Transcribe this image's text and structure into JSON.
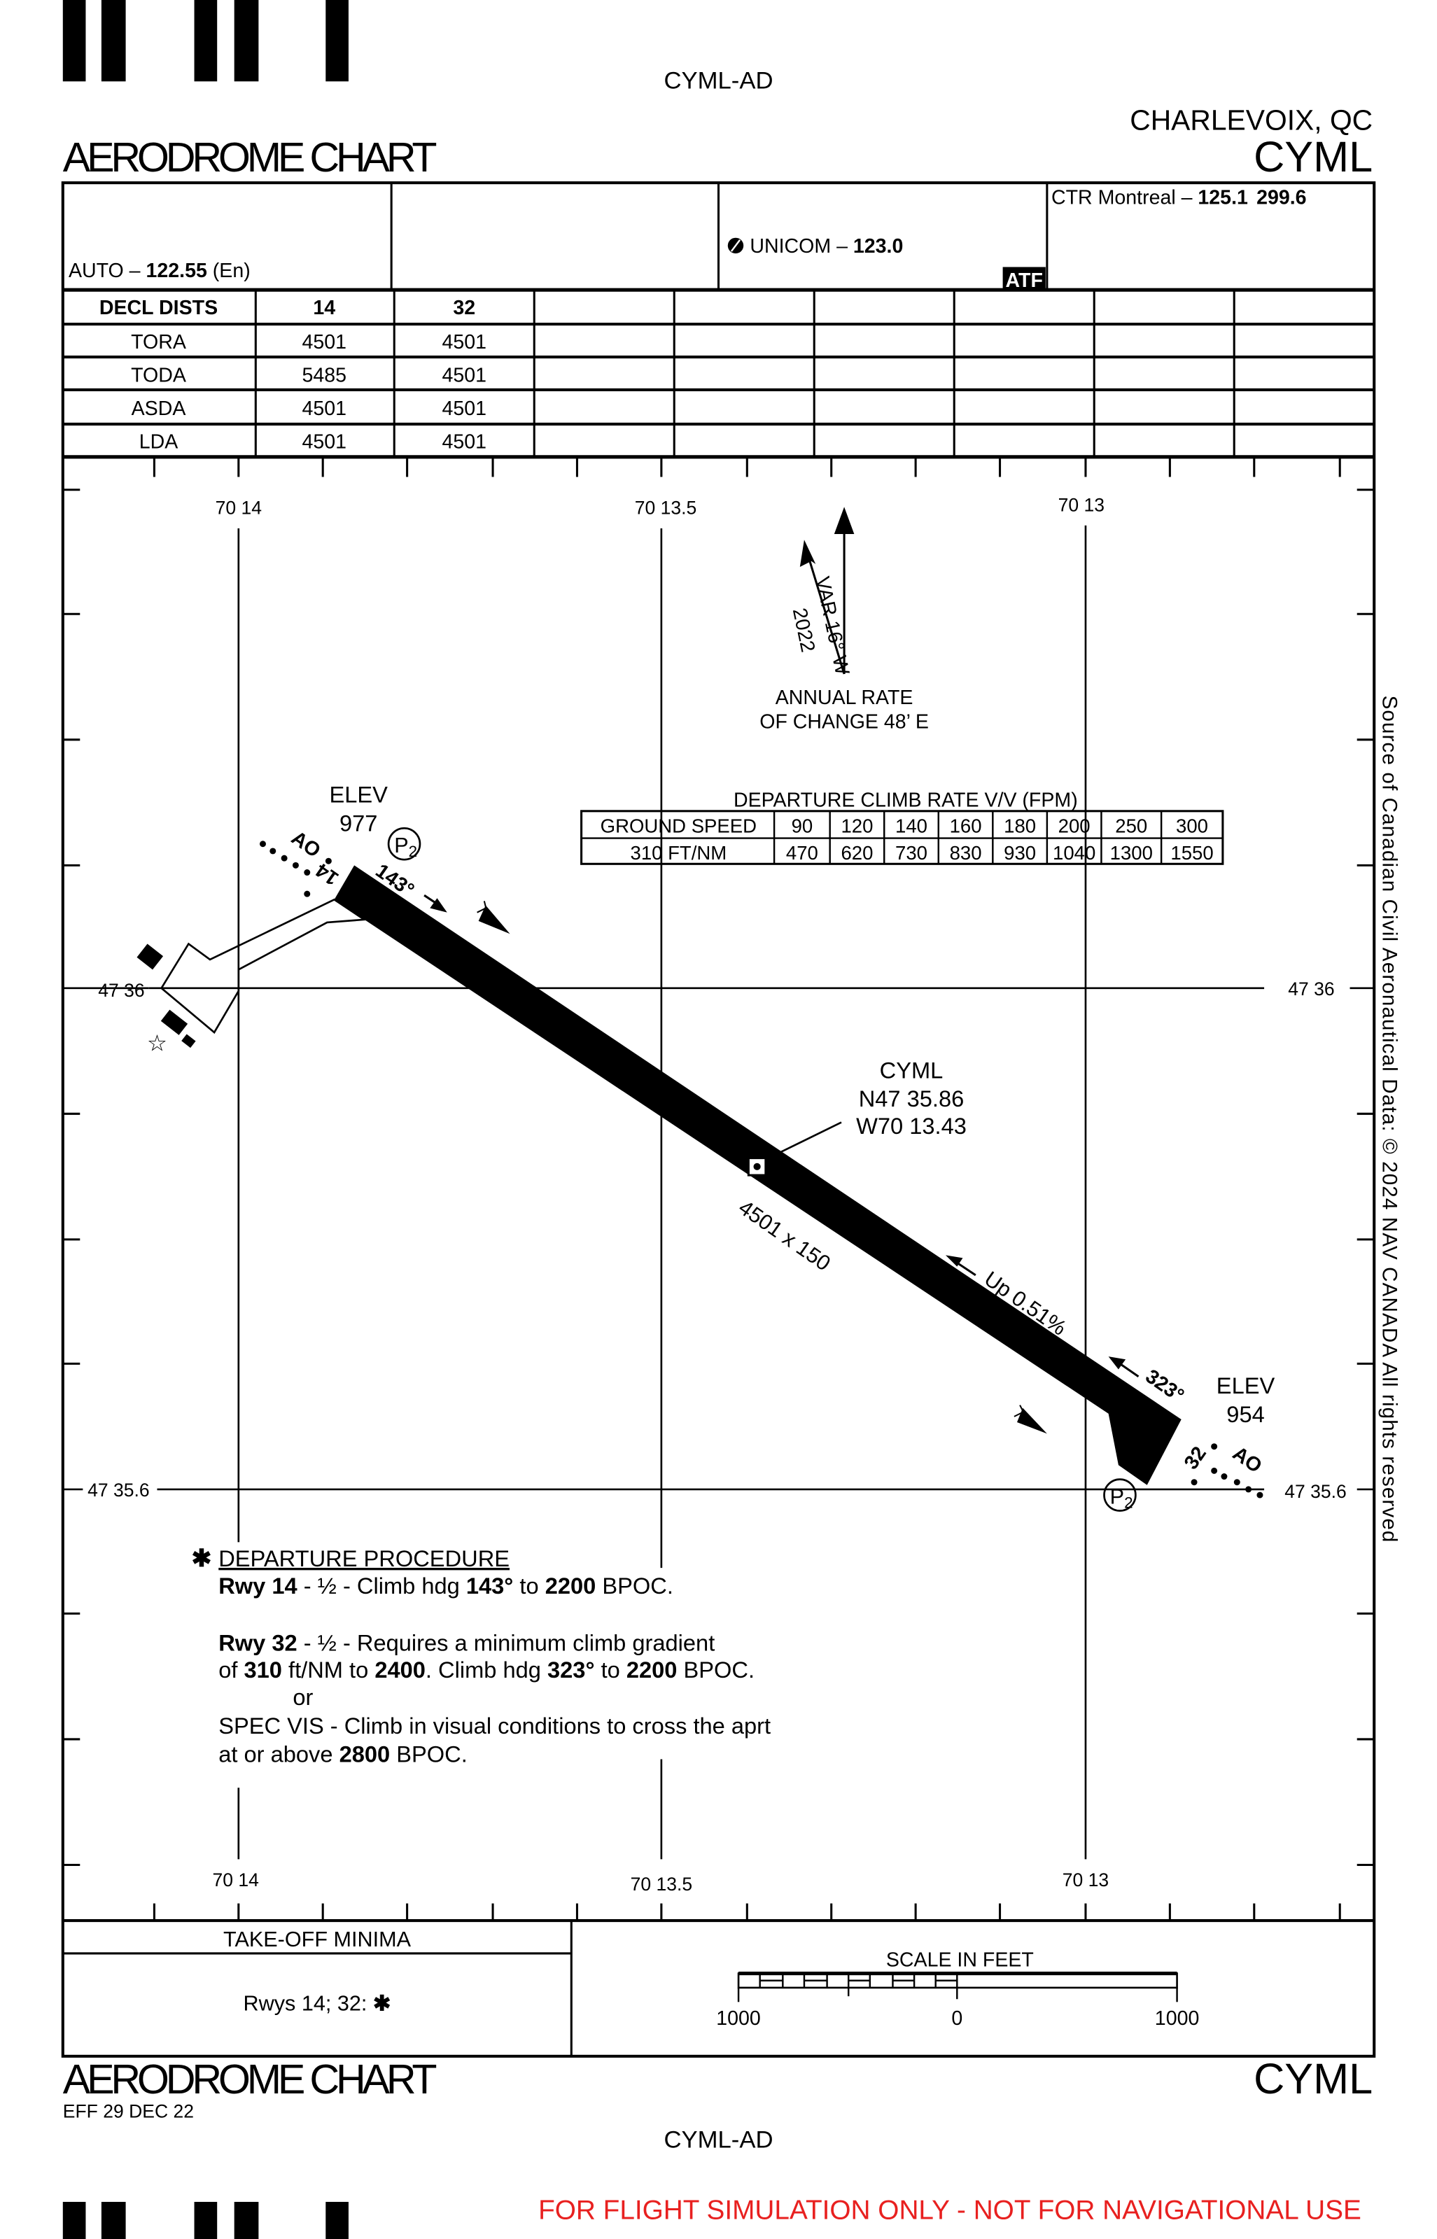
{
  "header": {
    "doc_id": "CYML-AD",
    "title": "AERODROME CHART",
    "location": "CHARLEVOIX, QC",
    "ident": "CYML"
  },
  "comms": {
    "auto_label": "AUTO – ",
    "auto_freq": "122.55",
    "auto_suffix": " (En)",
    "unicom_label": "UNICOM – ",
    "unicom_freq": "123.0",
    "atf": "ATF",
    "ctr_label": "CTR Montreal – ",
    "ctr_freq1": "125.1",
    "ctr_freq2": "299.6"
  },
  "decl_dists": {
    "headers": [
      "DECL DISTS",
      "14",
      "32"
    ],
    "rows": [
      [
        "TORA",
        "4501",
        "4501"
      ],
      [
        "TODA",
        "5485",
        "4501"
      ],
      [
        "ASDA",
        "4501",
        "4501"
      ],
      [
        "LDA",
        "4501",
        "4501"
      ]
    ]
  },
  "grid": {
    "lon_labels": [
      "70 14",
      "70 13.5",
      "70 13"
    ],
    "lat_labels": [
      "47 36",
      "47 35.6"
    ]
  },
  "magnetic": {
    "variation": "VAR 16° W",
    "year": "2022",
    "annual_1": "ANNUAL RATE",
    "annual_2": "OF CHANGE 48’ E"
  },
  "climb_table": {
    "title": "DEPARTURE CLIMB RATE V/V (FPM)",
    "row1_label": "GROUND SPEED",
    "speeds": [
      "90",
      "120",
      "140",
      "160",
      "180",
      "200",
      "250",
      "300"
    ],
    "row2_label": "310 FT/NM",
    "rates": [
      "470",
      "620",
      "730",
      "830",
      "930",
      "1040",
      "1300",
      "1550"
    ]
  },
  "runway": {
    "rwy14": "14",
    "rwy32": "32",
    "hdg14": "143°",
    "hdg32": "323°",
    "elev14_label": "ELEV",
    "elev14": "977",
    "elev32_label": "ELEV",
    "elev32": "954",
    "dims": "4501 x 150",
    "slope": "Up 0.51%",
    "ao": "AO",
    "p2": "P",
    "p2_sub": "2"
  },
  "arp": {
    "ident": "CYML",
    "lat": "N47 35.86",
    "lon": "W70 13.43"
  },
  "departure": {
    "asterisk": "✱",
    "title": "DEPARTURE PROCEDURE",
    "l1": [
      "Rwy 14",
      " - ½ - Climb hdg  ",
      "143°",
      " to  ",
      "2200",
      " BPOC."
    ],
    "l2": [
      "Rwy 32",
      " - ½ - Requires a minimum climb gradient"
    ],
    "l3": [
      "of ",
      "310",
      " ft/NM to ",
      "2400",
      ". Climb hdg  ",
      "323°",
      " to  ",
      "2200",
      " BPOC."
    ],
    "l4": "or",
    "l5": "SPEC VIS - Climb in visual conditions to cross the aprt",
    "l6": [
      "at or above  ",
      "2800",
      "  BPOC."
    ]
  },
  "copyright": "Source of Canadian Civil Aeronautical Data: © 2024 NAV CANADA All rights reserved",
  "minima": {
    "title": "TAKE-OFF MINIMA",
    "text": "Rwys 14; 32:  ",
    "asterisk": "✱"
  },
  "scale": {
    "title": "SCALE IN FEET",
    "labels": [
      "1000",
      "0",
      "1000"
    ]
  },
  "footer": {
    "title": "AERODROME CHART",
    "eff": "EFF 29 DEC 22",
    "ident": "CYML",
    "doc_id": "CYML-AD",
    "notice": "FOR FLIGHT SIMULATION ONLY - NOT FOR NAVIGATIONAL USE",
    "notice_color": "#e8201f"
  }
}
